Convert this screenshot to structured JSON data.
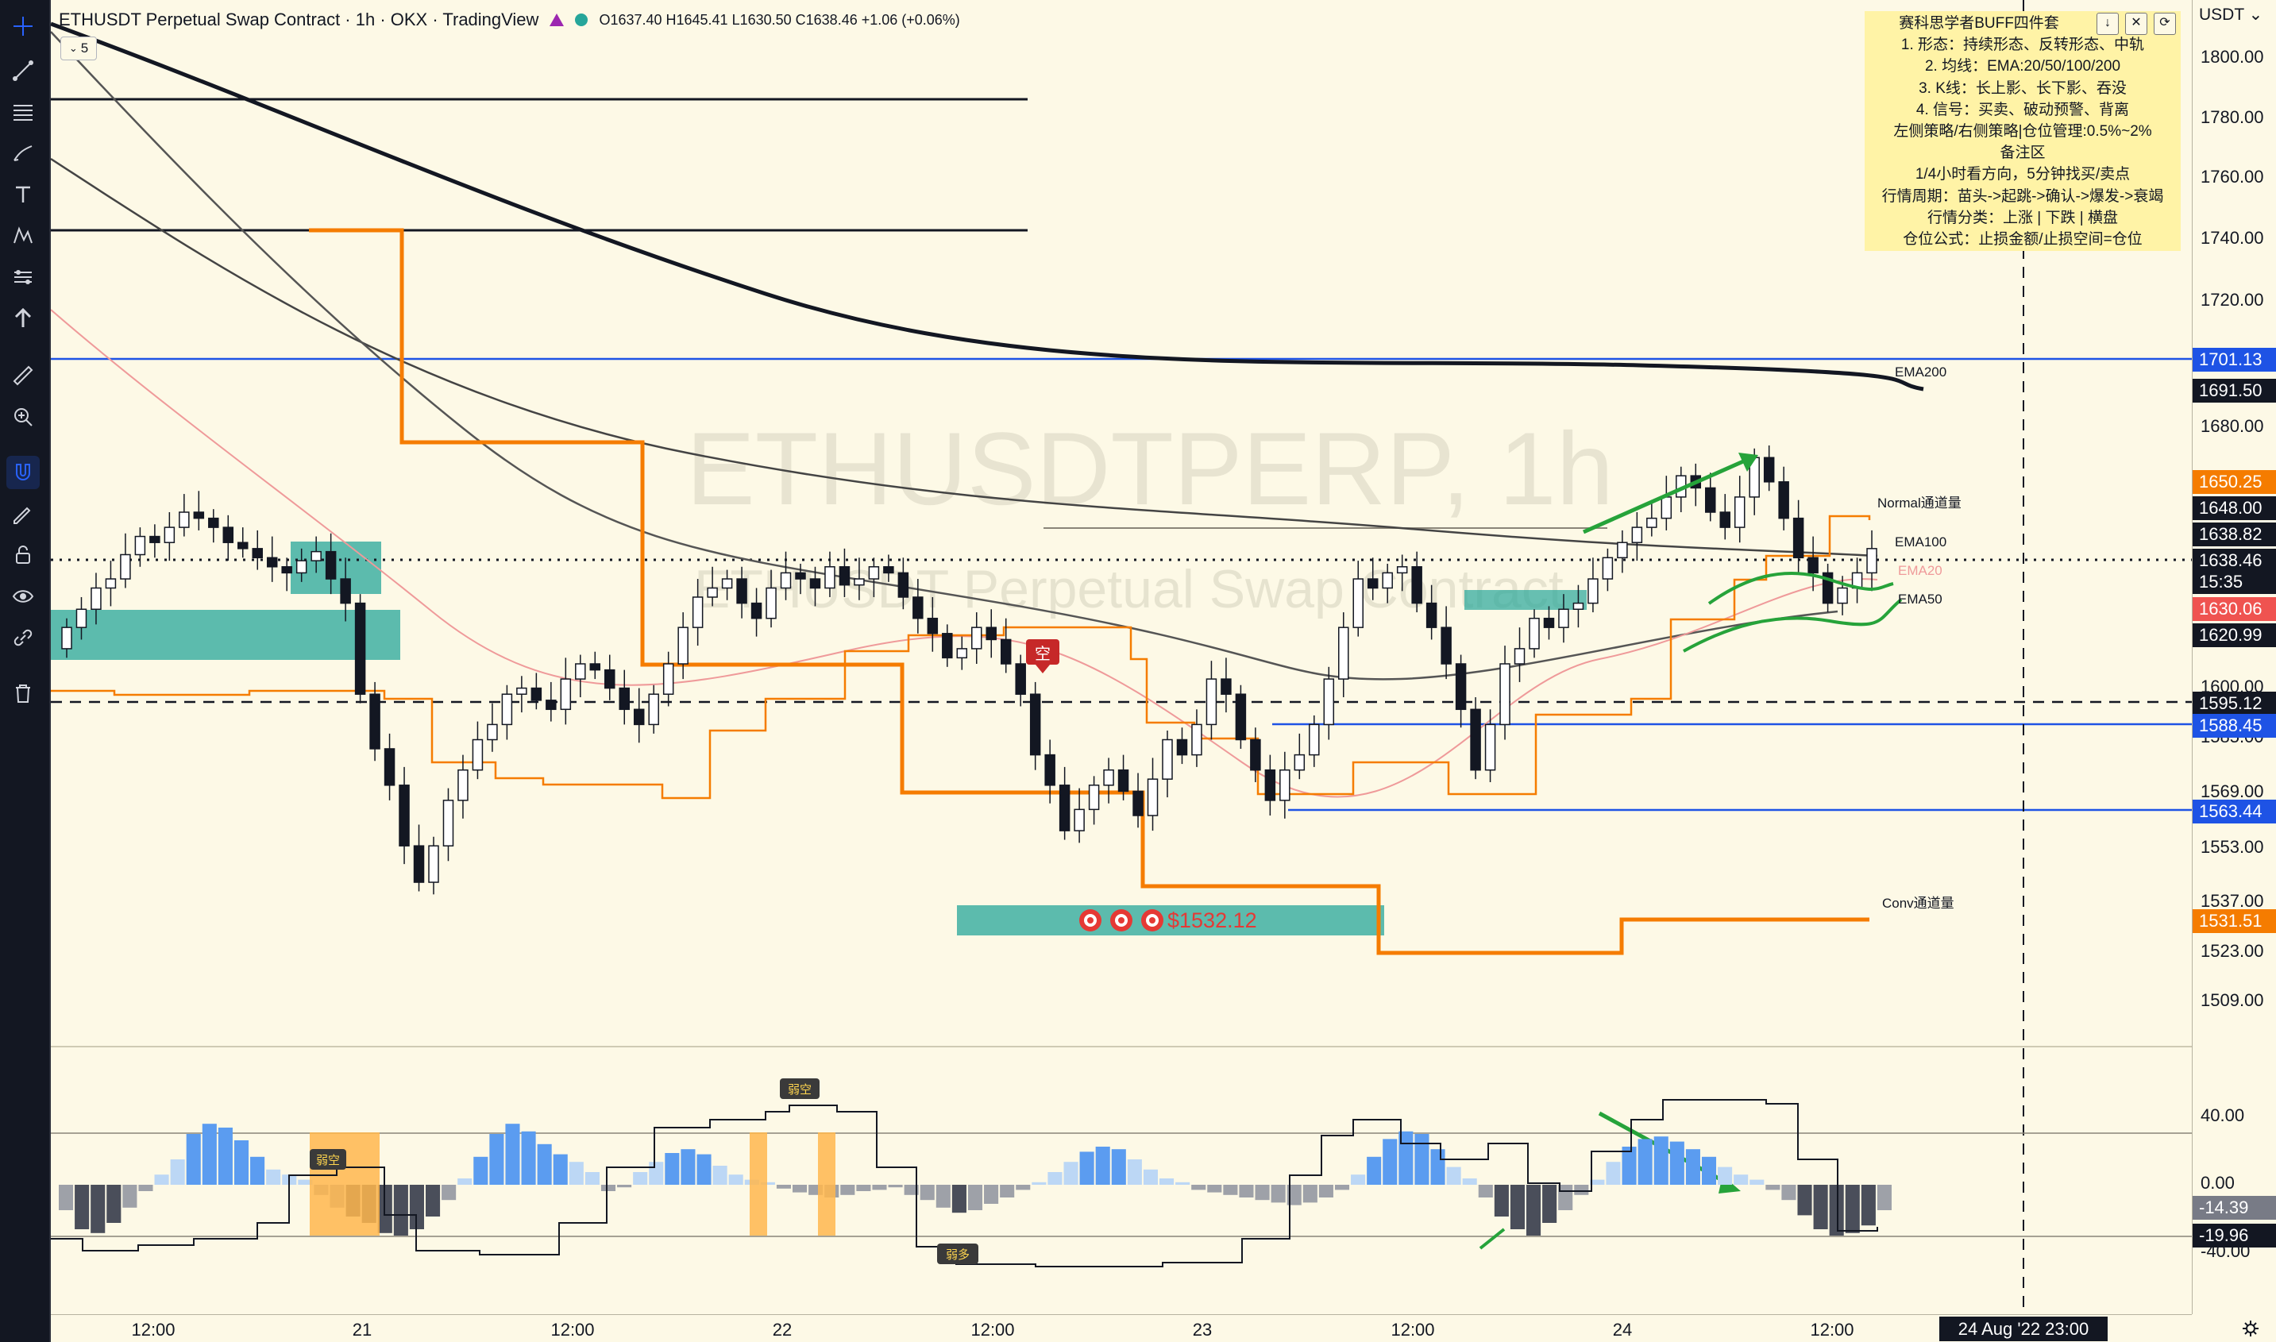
{
  "legend": {
    "symbol": "ETHUSDT Perpetual Swap Contract · 1h · OKX · TradingView",
    "ohlc": "O1637.40 H1645.41 L1630.50 C1638.46 +1.06 (+0.06%)",
    "sub_count": "5"
  },
  "watermark": {
    "main": "ETHUSDTPERP, 1h",
    "sub": "ETHUSDT Perpetual Swap Contract"
  },
  "note_panel": {
    "title": "赛科思学者BUFF四件套",
    "lines": [
      "1. 形态：持续形态、反转形态、中轨",
      "2. 均线：EMA:20/50/100/200",
      "3. K线：长上影、长下影、吞没",
      "4. 信号：买卖、破动预警、背离",
      "左侧策略/右侧策略|仓位管理:0.5%~2%",
      "备注区",
      "1/4小时看方向，5分钟找买/卖点",
      "行情周期：苗头->起跳->确认->爆发->衰竭",
      "行情分类：上涨 | 下跌 | 横盘",
      "仓位公式：止损金额/止损空间=仓位"
    ]
  },
  "price_axis": {
    "unit": "USDT",
    "ticks": [
      "1800.00",
      "1780.00",
      "1760.00",
      "1740.00",
      "1720.00",
      "1680.00",
      "1600.00",
      "1585.00",
      "1569.00",
      "1553.00",
      "1537.00",
      "1523.00",
      "1509.00"
    ],
    "indicator_ticks": [
      "40.00",
      "0.00",
      "-40.00"
    ],
    "labels": [
      {
        "text": "1701.13",
        "bg": "#1e53e5"
      },
      {
        "text": "1691.50",
        "bg": "#131722"
      },
      {
        "text": "1650.25",
        "bg": "#f57c00"
      },
      {
        "text": "1648.00",
        "bg": "#131722"
      },
      {
        "text": "1638.82",
        "bg": "#131722"
      },
      {
        "text": "1638.46",
        "bg": "#131722"
      },
      {
        "text": "15:35",
        "bg": "#131722"
      },
      {
        "text": "1630.06",
        "bg": "#ef5350"
      },
      {
        "text": "1620.99",
        "bg": "#131722"
      },
      {
        "text": "1595.12",
        "bg": "#131722"
      },
      {
        "text": "1588.45",
        "bg": "#1e53e5"
      },
      {
        "text": "1563.44",
        "bg": "#1e53e5"
      },
      {
        "text": "1531.51",
        "bg": "#f57c00"
      },
      {
        "text": "-14.39",
        "bg": "#787b86"
      },
      {
        "text": "-19.96",
        "bg": "#131722"
      }
    ]
  },
  "time_axis": {
    "labels": [
      "12:00",
      "21",
      "12:00",
      "22",
      "12:00",
      "23",
      "12:00",
      "24",
      "12:00"
    ],
    "cursor": "24 Aug '22   23:00"
  },
  "annotations": {
    "ema200": "EMA200",
    "ema100": "EMA100",
    "ema20": "EMA20",
    "ema50": "EMA50",
    "normal_channel": "Normal通道量",
    "conv_channel": "Conv通道量",
    "target_price": "$1532.12",
    "short_marker": "空",
    "osc_short_1": "弱空",
    "osc_short_2": "弱空",
    "osc_long": "弱多"
  },
  "colors": {
    "up": "#ffffff",
    "down": "#131722",
    "orange": "#f57c00",
    "blue_line": "#1e53e5",
    "green_zone": "#26a69a",
    "arrow_green": "#26a33a"
  },
  "toolbar": {
    "icons": [
      "cross-icon",
      "trend-line-icon",
      "fib-icon",
      "brush-icon",
      "text-icon",
      "pattern-icon",
      "forecast-icon",
      "arrow-up-icon",
      "ruler-icon",
      "zoom-icon",
      "magnet-icon",
      "pencil-lock-icon",
      "lock-icon",
      "eye-icon",
      "link-icon",
      "trash-icon"
    ]
  }
}
